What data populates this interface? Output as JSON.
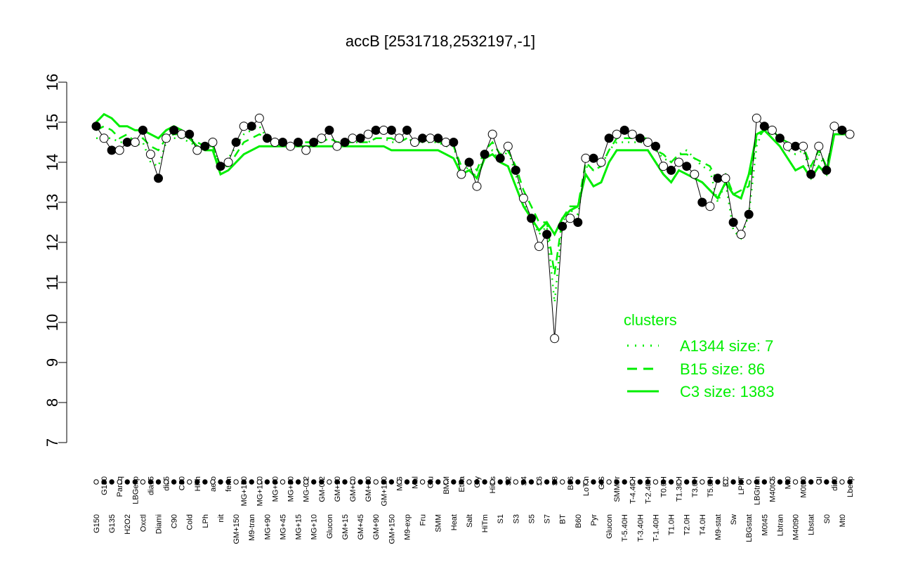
{
  "chart_data": {
    "type": "line",
    "title": "accB [2531718,2532197,-1]",
    "xlabel": "",
    "ylabel": "",
    "ylim": [
      7,
      16
    ],
    "yticks": [
      7,
      8,
      9,
      10,
      11,
      12,
      13,
      14,
      15,
      16
    ],
    "grid": false,
    "x_tick_labels": [
      "G150",
      "G180",
      "G135",
      "Paraq",
      "H2O2",
      "LBGexp",
      "Oxctl",
      "dia15",
      "Diami",
      "dia5",
      "C90",
      "C30",
      "Cold",
      "HPh",
      "LPh",
      "aero",
      "nit",
      "ferm",
      "GM+150",
      "MG+150",
      "M9-tran",
      "MG+120",
      "MG+90",
      "MG+60",
      "MG+45",
      "MG+30",
      "MG+15",
      "MG-0.2",
      "MG+10",
      "GM-0.2",
      "Glucon",
      "GM+10",
      "GM+15",
      "GM+30",
      "GM+45",
      "GM+60",
      "GM+90",
      "GM+120",
      "GM+150",
      "M/G",
      "M9-exp",
      "Mal",
      "Fru",
      "Glu",
      "SMM",
      "BMM",
      "Heat",
      "Etha",
      "Salt",
      "Gly",
      "HiTm",
      "HiOs",
      "S1",
      "S2",
      "S3",
      "S4",
      "S5",
      "S6",
      "S7",
      "S8",
      "BT",
      "B36",
      "B60",
      "LoTm",
      "Pyr",
      "G/S",
      "Glucon",
      "SMMPr",
      "T-5.40H",
      "T-4.40H",
      "T-3.40H",
      "T-2.40H",
      "T-1.40H",
      "T0.0H",
      "T1.0H",
      "T1.30H",
      "T2.0H",
      "T3.0H",
      "T4.0H",
      "T5.0H",
      "M9-stat",
      "BC",
      "Sw",
      "LPhT",
      "LBGstat",
      "LBGtran",
      "M0t45",
      "M40t45",
      "Lbtran",
      "Mt0",
      "M40t90",
      "M0t90",
      "Lbstat",
      "BI",
      "S0",
      "dia0",
      "Mt0",
      "Lbexp"
    ],
    "series": [
      {
        "name": "A1344 size: 7",
        "style": "dotted",
        "values": [
          14.6,
          14.6,
          14.6,
          14.5,
          14.5,
          14.4,
          14.5,
          14.0,
          13.9,
          14.5,
          14.6,
          14.6,
          14.5,
          14.4,
          14.4,
          14.4,
          13.9,
          14.1,
          14.4,
          14.7,
          14.8,
          14.9,
          14.6,
          14.5,
          14.4,
          14.4,
          14.5,
          14.5,
          14.5,
          14.5,
          14.6,
          14.5,
          14.5,
          14.5,
          14.5,
          14.5,
          14.6,
          14.6,
          14.5,
          14.5,
          14.6,
          14.5,
          14.5,
          14.5,
          14.5,
          14.4,
          14.4,
          13.7,
          13.9,
          13.6,
          14.2,
          14.3,
          14.0,
          14.3,
          13.7,
          13.0,
          12.6,
          12.2,
          12.4,
          10.5,
          12.5,
          12.8,
          12.7,
          13.9,
          13.8,
          13.9,
          14.3,
          14.5,
          14.5,
          14.5,
          14.5,
          14.5,
          14.3,
          14.1,
          14.0,
          14.2,
          14.3,
          14.1,
          13.9,
          13.8,
          13.0,
          13.5,
          12.3,
          12.1,
          12.7,
          14.4,
          14.9,
          14.7,
          14.6,
          14.3,
          14.2,
          14.3,
          13.7,
          14.2,
          13.8,
          14.7,
          14.7,
          14.7
        ]
      },
      {
        "name": "B15 size: 86",
        "style": "dashed",
        "values": [
          14.8,
          14.9,
          14.8,
          14.6,
          14.7,
          14.5,
          14.6,
          14.4,
          14.3,
          14.6,
          14.7,
          14.7,
          14.6,
          14.5,
          14.4,
          14.4,
          13.9,
          13.9,
          14.2,
          14.5,
          14.6,
          14.7,
          14.6,
          14.5,
          14.5,
          14.4,
          14.5,
          14.5,
          14.5,
          14.5,
          14.6,
          14.5,
          14.5,
          14.5,
          14.5,
          14.5,
          14.6,
          14.6,
          14.6,
          14.5,
          14.6,
          14.5,
          14.5,
          14.6,
          14.5,
          14.5,
          14.4,
          13.9,
          14.0,
          13.8,
          14.3,
          14.5,
          14.2,
          14.3,
          13.9,
          13.3,
          12.9,
          12.5,
          12.5,
          11.2,
          12.6,
          12.9,
          12.9,
          14.0,
          13.8,
          13.9,
          14.3,
          14.6,
          14.6,
          14.6,
          14.6,
          14.6,
          14.3,
          14.2,
          14.0,
          14.2,
          14.2,
          14.1,
          14.0,
          13.9,
          13.5,
          13.7,
          13.2,
          13.3,
          13.4,
          14.6,
          14.8,
          14.8,
          14.6,
          14.5,
          14.4,
          14.4,
          13.9,
          14.3,
          13.9,
          14.7,
          14.7,
          14.7
        ]
      },
      {
        "name": "C3 size: 1383",
        "style": "solid",
        "values": [
          15.0,
          15.2,
          15.1,
          14.9,
          14.9,
          14.8,
          14.8,
          14.7,
          14.6,
          14.8,
          14.9,
          14.8,
          14.6,
          14.4,
          14.3,
          14.3,
          13.7,
          13.8,
          14.0,
          14.2,
          14.3,
          14.4,
          14.4,
          14.4,
          14.4,
          14.4,
          14.4,
          14.4,
          14.4,
          14.4,
          14.4,
          14.4,
          14.4,
          14.4,
          14.4,
          14.4,
          14.4,
          14.4,
          14.3,
          14.3,
          14.3,
          14.3,
          14.3,
          14.3,
          14.3,
          14.2,
          14.1,
          13.7,
          13.8,
          13.6,
          14.1,
          14.2,
          14.0,
          13.9,
          13.4,
          12.9,
          12.6,
          12.3,
          12.5,
          12.2,
          12.6,
          12.8,
          12.9,
          13.7,
          13.4,
          13.5,
          14.0,
          14.3,
          14.3,
          14.3,
          14.3,
          14.3,
          14.0,
          13.7,
          13.5,
          13.8,
          13.7,
          13.6,
          13.5,
          13.3,
          13.1,
          13.5,
          13.2,
          13.1,
          13.7,
          14.7,
          14.8,
          14.6,
          14.4,
          14.1,
          13.8,
          13.9,
          13.6,
          13.9,
          13.7,
          14.7,
          14.7,
          14.7
        ]
      },
      {
        "name": "observations",
        "style": "points",
        "values": [
          14.9,
          14.6,
          14.3,
          14.3,
          14.5,
          14.5,
          14.8,
          14.2,
          13.6,
          14.6,
          14.8,
          14.7,
          14.7,
          14.3,
          14.4,
          14.5,
          13.9,
          14.0,
          14.5,
          14.9,
          14.9,
          15.1,
          14.6,
          14.5,
          14.5,
          14.4,
          14.5,
          14.3,
          14.5,
          14.6,
          14.8,
          14.4,
          14.5,
          14.6,
          14.6,
          14.7,
          14.8,
          14.8,
          14.8,
          14.6,
          14.8,
          14.5,
          14.6,
          14.6,
          14.6,
          14.5,
          14.5,
          13.7,
          14.0,
          13.4,
          14.2,
          14.7,
          14.1,
          14.4,
          13.8,
          13.1,
          12.6,
          11.9,
          12.2,
          9.6,
          12.4,
          12.6,
          12.5,
          14.1,
          14.1,
          14.0,
          14.6,
          14.7,
          14.8,
          14.7,
          14.6,
          14.5,
          14.4,
          13.9,
          13.8,
          14.0,
          13.9,
          13.7,
          13.0,
          12.9,
          13.6,
          13.6,
          12.5,
          12.2,
          12.7,
          15.1,
          14.9,
          14.8,
          14.6,
          14.4,
          14.4,
          14.4,
          13.7,
          14.4,
          13.8,
          14.9,
          14.8,
          14.7
        ]
      }
    ],
    "legend": {
      "title": "clusters",
      "placement": "right",
      "entries": [
        "A1344 size: 7",
        "B15 size: 86",
        "C3 size: 1383"
      ]
    },
    "colors": {
      "series_line": "#00ee00",
      "points": "#000000",
      "legend_text": "#00ee00"
    }
  }
}
